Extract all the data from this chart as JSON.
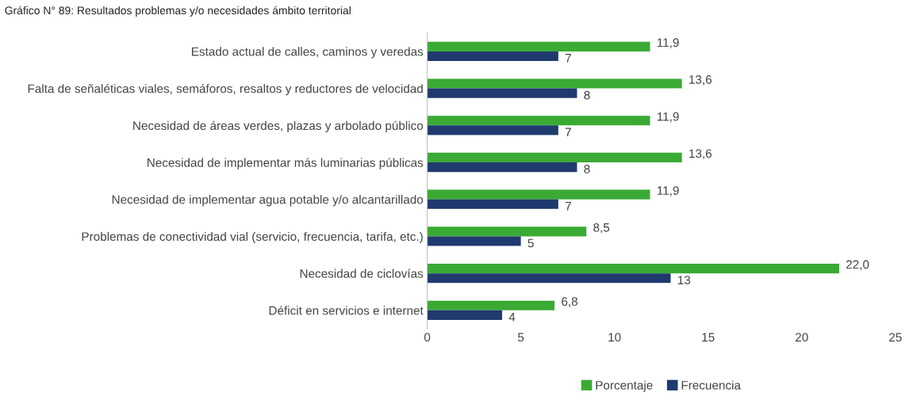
{
  "chart_data": {
    "type": "bar",
    "orientation": "horizontal",
    "title": "Gráfico N° 89: Resultados problemas y/o necesidades ámbito territorial",
    "categories": [
      "Estado actual de calles, caminos y veredas",
      "Falta de señaléticas viales, semáforos, resaltos y reductores de velocidad",
      "Necesidad de áreas verdes, plazas y arbolado público",
      "Necesidad de implementar más luminarias públicas",
      "Necesidad de implementar agua potable y/o alcantarillado",
      "Problemas de conectividad vial (servicio, frecuencia, tarifa, etc.)",
      "Necesidad de ciclovías",
      "Déficit en servicios e internet"
    ],
    "series": [
      {
        "name": "Porcentaje",
        "color": "#3aaa35",
        "values": [
          11.9,
          13.6,
          11.9,
          13.6,
          11.9,
          8.5,
          22.0,
          6.8
        ],
        "value_labels": [
          "11,9",
          "13,6",
          "11,9",
          "13,6",
          "11,9",
          "8,5",
          "22,0",
          "6,8"
        ]
      },
      {
        "name": "Frecuencia",
        "color": "#1f3a6e",
        "values": [
          7,
          8,
          7,
          8,
          7,
          5,
          13,
          4
        ],
        "value_labels": [
          "7",
          "8",
          "7",
          "8",
          "7",
          "5",
          "13",
          "4"
        ]
      }
    ],
    "xlim": [
      0,
      25
    ],
    "xticks": [
      0,
      5,
      10,
      15,
      20,
      25
    ],
    "grid": false,
    "legend": "bottom"
  }
}
